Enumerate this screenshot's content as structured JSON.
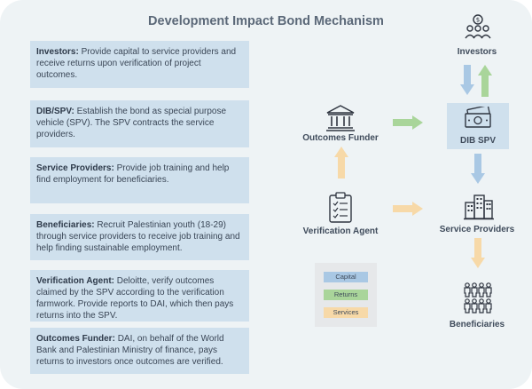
{
  "title": "Development Impact Bond Mechanism",
  "descriptions": [
    {
      "name": "Investors:",
      "text": "Provide capital to service providers and receive returns upon verification of project outcomes."
    },
    {
      "name": "DIB/SPV:",
      "text": "Establish the bond as special purpose vehicle (SPV). The SPV contracts the service providers."
    },
    {
      "name": "Service Providers:",
      "text": "Provide job training and help find employment for beneficiaries."
    },
    {
      "name": "Beneficiaries:",
      "text": "Recruit Palestinian youth (18-29) through service providers to receive job training and help finding sustainable employment."
    },
    {
      "name": "Verification Agent:",
      "text": "Deloitte, verify outcomes claimed by the SPV according to the verification farmwork. Provide reports to DAI, which then pays returns into the SPV."
    },
    {
      "name": "Outcomes Funder:",
      "text": "DAI, on behalf of the World Bank and Palestinian Ministry of finance, pays returns to investors once outcomes are verified."
    }
  ],
  "nodes": {
    "investors": "Investors",
    "dib_spv": "DIB SPV",
    "outcomes_funder": "Outcomes Funder",
    "service_providers": "Service Providers",
    "verification_agent": "Verification Agent",
    "beneficiaries": "Beneficiaries"
  },
  "legend": {
    "capital": "Capital",
    "returns": "Returns",
    "services": "Services"
  },
  "colors": {
    "capital": "#a9c8e4",
    "returns": "#a9d59a",
    "services": "#f7d9a8"
  }
}
